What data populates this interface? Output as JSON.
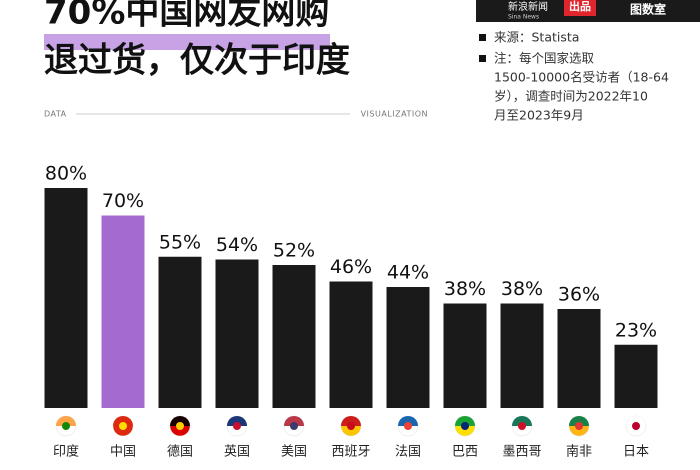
{
  "header": {
    "brand": "新浪新闻",
    "brand_en": "Sina News",
    "badge": "出品",
    "studio": "图数室"
  },
  "chart_data": {
    "type": "bar",
    "title": [
      "70%中国网友网购",
      "退过货，仅次于印度"
    ],
    "source": "来源：Statista",
    "note": [
      "注：每个国家选取",
      "1500-10000名受访者（18-64",
      "岁），调查时间为2022年10",
      "月至2023年9月"
    ],
    "left_label": "DATA",
    "right_label": "VISUALIZATION",
    "categories": [
      "印度",
      "中国",
      "德国",
      "英国",
      "美国",
      "西班牙",
      "法国",
      "巴西",
      "墨西哥",
      "南非",
      "日本"
    ],
    "values": [
      80,
      70,
      55,
      54,
      52,
      46,
      44,
      38,
      38,
      36,
      23
    ],
    "value_labels": [
      "80%",
      "70%",
      "55%",
      "54%",
      "52%",
      "46%",
      "44%",
      "38%",
      "38%",
      "36%",
      "23%"
    ],
    "colors": [
      "#1a1a1a",
      "#a56ad0",
      "#1a1a1a",
      "#1a1a1a",
      "#1a1a1a",
      "#1a1a1a",
      "#1a1a1a",
      "#1a1a1a",
      "#1a1a1a",
      "#1a1a1a",
      "#1a1a1a"
    ]
  }
}
